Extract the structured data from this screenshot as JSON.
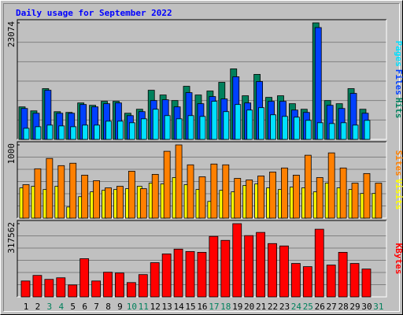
{
  "chart_data": [
    {
      "type": "bar",
      "title": "Daily usage for September 2022",
      "categories": [
        "1",
        "2",
        "3",
        "4",
        "5",
        "6",
        "7",
        "8",
        "9",
        "10",
        "11",
        "12",
        "13",
        "14",
        "15",
        "16",
        "17",
        "18",
        "19",
        "20",
        "21",
        "22",
        "23",
        "24",
        "25",
        "26",
        "27",
        "28",
        "29",
        "30",
        "31"
      ],
      "category_colors": [
        "#000000",
        "#000000",
        "#00805c",
        "#00805c",
        "#000000",
        "#000000",
        "#000000",
        "#000000",
        "#000000",
        "#00805c",
        "#00805c",
        "#000000",
        "#000000",
        "#000000",
        "#000000",
        "#000000",
        "#00805c",
        "#00805c",
        "#000000",
        "#000000",
        "#000000",
        "#000000",
        "#000000",
        "#00805c",
        "#00805c",
        "#000000",
        "#000000",
        "#000000",
        "#000000",
        "#000000",
        "#00805c"
      ],
      "ylim": [
        0,
        23074
      ],
      "yticks": [
        23074
      ],
      "series": [
        {
          "name": "Hits",
          "color": "#00805c",
          "values": [
            6440,
            5650,
            10050,
            5490,
            5340,
            7220,
            6750,
            7540,
            7540,
            5180,
            5970,
            9730,
            8790,
            7690,
            10520,
            8790,
            9580,
            11300,
            13970,
            8640,
            12870,
            8320,
            8640,
            7070,
            5970,
            23074,
            7690,
            7070,
            10050,
            5970,
            null
          ]
        },
        {
          "name": "Files",
          "color": "#0040ff",
          "values": [
            6120,
            5180,
            9730,
            5180,
            5180,
            6910,
            6440,
            7070,
            7220,
            4710,
            5500,
            7690,
            7850,
            6440,
            9260,
            7070,
            8480,
            8010,
            12400,
            7220,
            11460,
            7540,
            7540,
            5810,
            5340,
            22140,
            6750,
            6120,
            9110,
            5180,
            null
          ]
        },
        {
          "name": "Pages",
          "color": "#00e0ff",
          "values": [
            2200,
            2510,
            2830,
            2670,
            2510,
            2830,
            2830,
            3610,
            3610,
            3300,
            4080,
            5970,
            4710,
            4080,
            4710,
            4550,
            7540,
            5500,
            6910,
            5810,
            6280,
            4870,
            4550,
            4400,
            3770,
            3300,
            3140,
            3300,
            2830,
            3770,
            null
          ]
        }
      ]
    },
    {
      "type": "bar",
      "ylim": [
        0,
        1000
      ],
      "yticks": [
        1000
      ],
      "series": [
        {
          "name": "Visits",
          "color": "#ffff00",
          "values": [
            413,
            435,
            391,
            435,
            152,
            293,
            359,
            380,
            391,
            402,
            435,
            478,
            467,
            554,
            457,
            391,
            228,
            380,
            359,
            446,
            467,
            413,
            391,
            424,
            413,
            359,
            478,
            413,
            391,
            337,
            337
          ]
        },
        {
          "name": "Sites",
          "color": "#ff8000",
          "values": [
            457,
            674,
            815,
            717,
            750,
            587,
            511,
            413,
            435,
            641,
            402,
            598,
            913,
            1000,
            728,
            565,
            739,
            728,
            543,
            522,
            576,
            630,
            685,
            587,
            859,
            554,
            891,
            685,
            478,
            609,
            478
          ]
        }
      ]
    },
    {
      "type": "bar",
      "ylim": [
        0,
        317562
      ],
      "yticks": [
        317562
      ],
      "series": [
        {
          "name": "KBytes",
          "color": "#ff0000",
          "values": [
            69040,
            93200,
            75940,
            82840,
            51780,
            165690,
            69040,
            107010,
            103550,
            62130,
            96650,
            148430,
            186400,
            207110,
            196750,
            193300,
            262340,
            245080,
            317562,
            265790,
            279600,
            231270,
            220920,
            144970,
            131170,
            293400,
            138070,
            193300,
            144970,
            120810,
            null
          ]
        }
      ]
    }
  ]
}
